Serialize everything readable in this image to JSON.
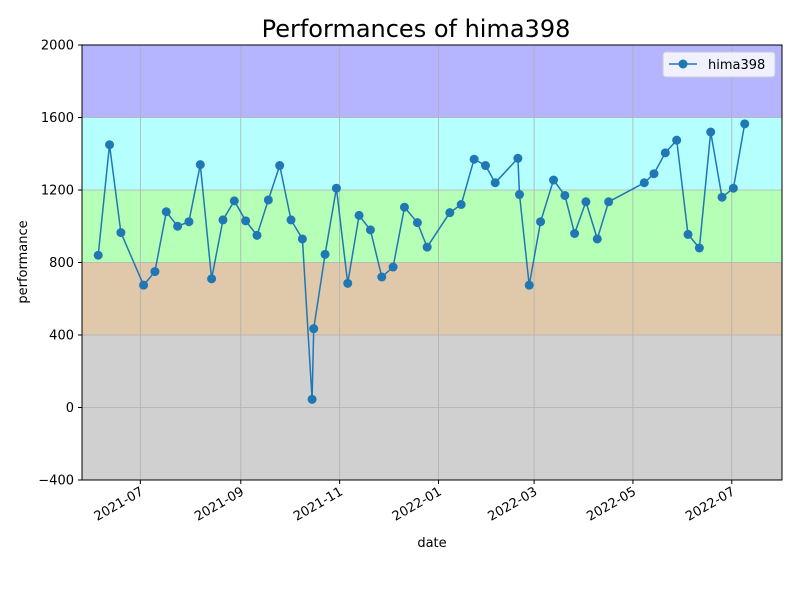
{
  "chart_data": {
    "type": "line",
    "title": "Performances of hima398",
    "xlabel": "date",
    "ylabel": "performance",
    "ylim": [
      -400,
      2000
    ],
    "xlim": [
      "2021-05-26",
      "2022-08-01"
    ],
    "y_ticks": [
      -400,
      0,
      400,
      800,
      1200,
      1600,
      2000
    ],
    "x_ticks": [
      "2021-07-01",
      "2021-09-01",
      "2021-11-01",
      "2022-01-01",
      "2022-03-01",
      "2022-05-01",
      "2022-07-01"
    ],
    "x_tick_labels": [
      "2021-07",
      "2021-09",
      "2021-11",
      "2022-01",
      "2022-03",
      "2022-05",
      "2022-07"
    ],
    "grid": true,
    "legend_position": "top-right",
    "bands": [
      {
        "from": -400,
        "to": 400,
        "color": "#d0d0d0"
      },
      {
        "from": 400,
        "to": 800,
        "color": "#e0c8ab"
      },
      {
        "from": 800,
        "to": 1200,
        "color": "#b6ffb6"
      },
      {
        "from": 1200,
        "to": 1600,
        "color": "#b6ffff"
      },
      {
        "from": 1600,
        "to": 2000,
        "color": "#b4b4ff"
      }
    ],
    "series": [
      {
        "name": "hima398",
        "color": "#1f77b4",
        "points": [
          [
            "2021-06-05",
            840
          ],
          [
            "2021-06-12",
            1450
          ],
          [
            "2021-06-19",
            965
          ],
          [
            "2021-07-03",
            675
          ],
          [
            "2021-07-10",
            750
          ],
          [
            "2021-07-17",
            1080
          ],
          [
            "2021-07-24",
            1000
          ],
          [
            "2021-07-31",
            1025
          ],
          [
            "2021-08-07",
            1340
          ],
          [
            "2021-08-14",
            710
          ],
          [
            "2021-08-21",
            1035
          ],
          [
            "2021-08-28",
            1140
          ],
          [
            "2021-09-04",
            1030
          ],
          [
            "2021-09-11",
            950
          ],
          [
            "2021-09-18",
            1145
          ],
          [
            "2021-09-25",
            1335
          ],
          [
            "2021-10-02",
            1035
          ],
          [
            "2021-10-09",
            930
          ],
          [
            "2021-10-15",
            45
          ],
          [
            "2021-10-16",
            435
          ],
          [
            "2021-10-23",
            845
          ],
          [
            "2021-10-30",
            1210
          ],
          [
            "2021-11-06",
            685
          ],
          [
            "2021-11-13",
            1060
          ],
          [
            "2021-11-20",
            980
          ],
          [
            "2021-11-27",
            720
          ],
          [
            "2021-12-04",
            775
          ],
          [
            "2021-12-11",
            1105
          ],
          [
            "2021-12-19",
            1020
          ],
          [
            "2021-12-25",
            885
          ],
          [
            "2022-01-08",
            1075
          ],
          [
            "2022-01-15",
            1120
          ],
          [
            "2022-01-23",
            1370
          ],
          [
            "2022-01-30",
            1335
          ],
          [
            "2022-02-05",
            1240
          ],
          [
            "2022-02-19",
            1375
          ],
          [
            "2022-02-20",
            1175
          ],
          [
            "2022-02-26",
            675
          ],
          [
            "2022-03-05",
            1025
          ],
          [
            "2022-03-13",
            1255
          ],
          [
            "2022-03-20",
            1170
          ],
          [
            "2022-03-26",
            960
          ],
          [
            "2022-04-02",
            1135
          ],
          [
            "2022-04-09",
            930
          ],
          [
            "2022-04-16",
            1135
          ],
          [
            "2022-05-08",
            1240
          ],
          [
            "2022-05-14",
            1290
          ],
          [
            "2022-05-21",
            1405
          ],
          [
            "2022-05-28",
            1475
          ],
          [
            "2022-06-04",
            955
          ],
          [
            "2022-06-11",
            880
          ],
          [
            "2022-06-18",
            1520
          ],
          [
            "2022-06-25",
            1160
          ],
          [
            "2022-07-02",
            1210
          ],
          [
            "2022-07-09",
            1565
          ]
        ]
      }
    ]
  }
}
